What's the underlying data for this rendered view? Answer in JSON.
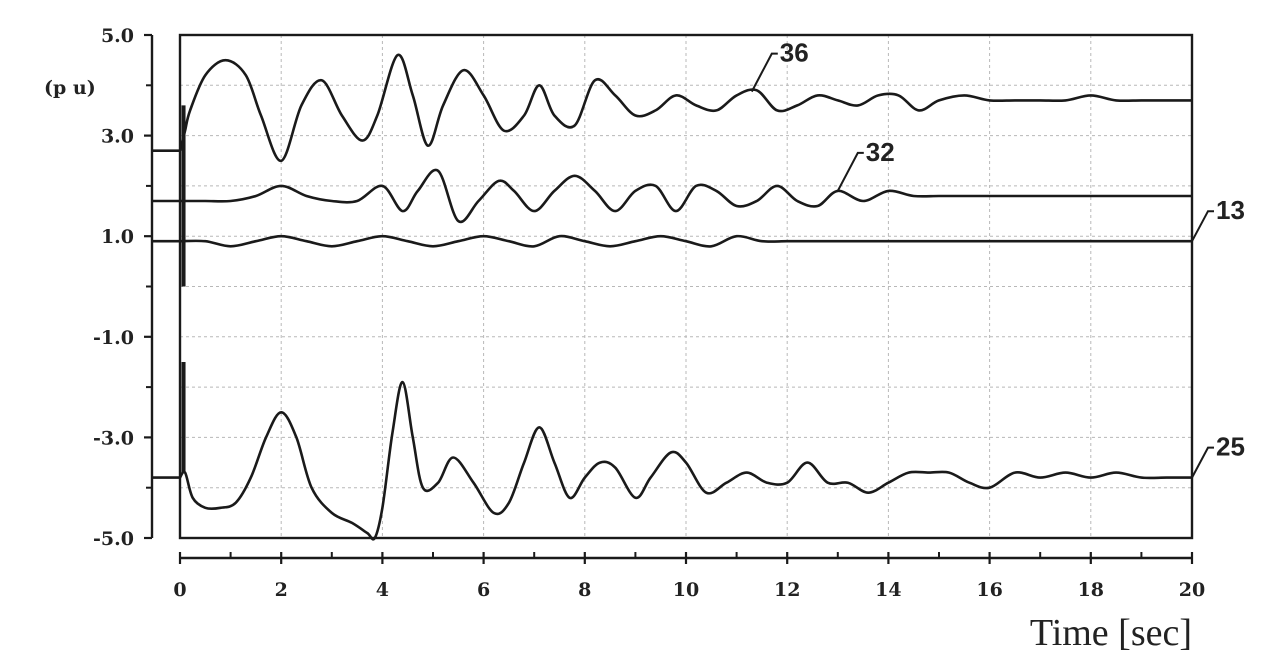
{
  "chart_data": {
    "type": "line",
    "title": "",
    "xlabel": "Time [sec]",
    "ylabel": "(p u)",
    "xlim": [
      0,
      20
    ],
    "ylim": [
      -5,
      5
    ],
    "grid": true,
    "x_ticks": [
      "0",
      "2",
      "4",
      "6",
      "8",
      "10",
      "12",
      "14",
      "16",
      "18",
      "20"
    ],
    "y_ticks": [
      "5.0",
      "3.0",
      "1.0",
      "-1.0",
      "-3.0",
      "-5.0"
    ],
    "series": [
      {
        "name": "36",
        "x": [
          0,
          0.1,
          0.2,
          0.5,
          0.9,
          1.3,
          1.6,
          2.0,
          2.4,
          2.8,
          3.2,
          3.6,
          3.9,
          4.3,
          4.6,
          4.9,
          5.2,
          5.6,
          6.0,
          6.4,
          6.8,
          7.1,
          7.4,
          7.8,
          8.2,
          8.6,
          9.0,
          9.4,
          9.8,
          10.2,
          10.6,
          11.0,
          11.4,
          11.8,
          12.2,
          12.6,
          13.0,
          13.4,
          13.8,
          14.2,
          14.6,
          15.0,
          15.5,
          16.0,
          16.5,
          17.0,
          17.5,
          18.0,
          18.5,
          19.0,
          19.5,
          20.0
        ],
        "values": [
          2.7,
          3.1,
          3.5,
          4.2,
          4.5,
          4.2,
          3.4,
          2.5,
          3.6,
          4.1,
          3.4,
          2.9,
          3.4,
          4.6,
          3.8,
          2.8,
          3.6,
          4.3,
          3.8,
          3.1,
          3.4,
          4.0,
          3.4,
          3.2,
          4.1,
          3.8,
          3.4,
          3.5,
          3.8,
          3.6,
          3.5,
          3.8,
          3.9,
          3.5,
          3.6,
          3.8,
          3.7,
          3.6,
          3.8,
          3.8,
          3.5,
          3.7,
          3.8,
          3.7,
          3.7,
          3.7,
          3.7,
          3.8,
          3.7,
          3.7,
          3.7,
          3.7
        ]
      },
      {
        "name": "32",
        "x": [
          0,
          0.5,
          1.0,
          1.5,
          2.0,
          2.5,
          3.0,
          3.5,
          4.0,
          4.4,
          4.7,
          5.1,
          5.5,
          5.9,
          6.3,
          6.6,
          7.0,
          7.4,
          7.8,
          8.2,
          8.6,
          9.0,
          9.4,
          9.8,
          10.2,
          10.6,
          11.0,
          11.4,
          11.8,
          12.2,
          12.6,
          13.0,
          13.5,
          14.0,
          14.5,
          15.0,
          15.5,
          16.0,
          16.5,
          17.0,
          17.5,
          18.0,
          18.5,
          19.0,
          19.5,
          20.0
        ],
        "values": [
          1.7,
          1.7,
          1.7,
          1.8,
          2.0,
          1.8,
          1.7,
          1.7,
          2.0,
          1.5,
          1.9,
          2.3,
          1.3,
          1.7,
          2.1,
          1.9,
          1.5,
          1.9,
          2.2,
          1.9,
          1.5,
          1.9,
          2.0,
          1.5,
          2.0,
          1.9,
          1.6,
          1.7,
          2.0,
          1.7,
          1.6,
          1.9,
          1.7,
          1.9,
          1.8,
          1.8,
          1.8,
          1.8,
          1.8,
          1.8,
          1.8,
          1.8,
          1.8,
          1.8,
          1.8,
          1.8
        ]
      },
      {
        "name": "13",
        "x": [
          0,
          0.5,
          1.0,
          1.5,
          2.0,
          2.5,
          3.0,
          3.5,
          4.0,
          4.5,
          5.0,
          5.5,
          6.0,
          6.5,
          7.0,
          7.5,
          8.0,
          8.5,
          9.0,
          9.5,
          10.0,
          10.5,
          11.0,
          11.5,
          12.0,
          12.5,
          13.0,
          13.5,
          14.0,
          15.0,
          16.0,
          17.0,
          18.0,
          19.0,
          20.0
        ],
        "values": [
          0.9,
          0.9,
          0.8,
          0.9,
          1.0,
          0.9,
          0.8,
          0.9,
          1.0,
          0.9,
          0.8,
          0.9,
          1.0,
          0.9,
          0.8,
          1.0,
          0.9,
          0.8,
          0.9,
          1.0,
          0.9,
          0.8,
          1.0,
          0.9,
          0.9,
          0.9,
          0.9,
          0.9,
          0.9,
          0.9,
          0.9,
          0.9,
          0.9,
          0.9,
          0.9
        ]
      },
      {
        "name": "25",
        "x": [
          0,
          0.1,
          0.25,
          0.5,
          0.8,
          1.1,
          1.4,
          1.7,
          2.0,
          2.3,
          2.6,
          3.0,
          3.4,
          3.7,
          3.85,
          4.0,
          4.2,
          4.4,
          4.6,
          4.8,
          5.1,
          5.4,
          5.8,
          6.2,
          6.5,
          6.8,
          7.1,
          7.4,
          7.7,
          8.0,
          8.3,
          8.6,
          9.0,
          9.3,
          9.7,
          10.0,
          10.4,
          10.8,
          11.2,
          11.6,
          12.0,
          12.4,
          12.8,
          13.2,
          13.6,
          14.0,
          14.4,
          14.8,
          15.2,
          15.6,
          16.0,
          16.5,
          17.0,
          17.5,
          18.0,
          18.5,
          19.0,
          19.5,
          20.0
        ],
        "values": [
          -3.8,
          -3.7,
          -4.2,
          -4.4,
          -4.4,
          -4.3,
          -3.8,
          -3.0,
          -2.5,
          -3.0,
          -4.0,
          -4.5,
          -4.7,
          -4.9,
          -5.0,
          -4.4,
          -2.9,
          -1.9,
          -3.0,
          -4.0,
          -3.9,
          -3.4,
          -3.9,
          -4.5,
          -4.3,
          -3.5,
          -2.8,
          -3.5,
          -4.2,
          -3.8,
          -3.5,
          -3.6,
          -4.2,
          -3.8,
          -3.3,
          -3.5,
          -4.1,
          -3.9,
          -3.7,
          -3.9,
          -3.9,
          -3.5,
          -3.9,
          -3.9,
          -4.1,
          -3.9,
          -3.7,
          -3.7,
          -3.7,
          -3.9,
          -4.0,
          -3.7,
          -3.8,
          -3.7,
          -3.8,
          -3.7,
          -3.8,
          -3.8,
          -3.8
        ]
      }
    ]
  }
}
